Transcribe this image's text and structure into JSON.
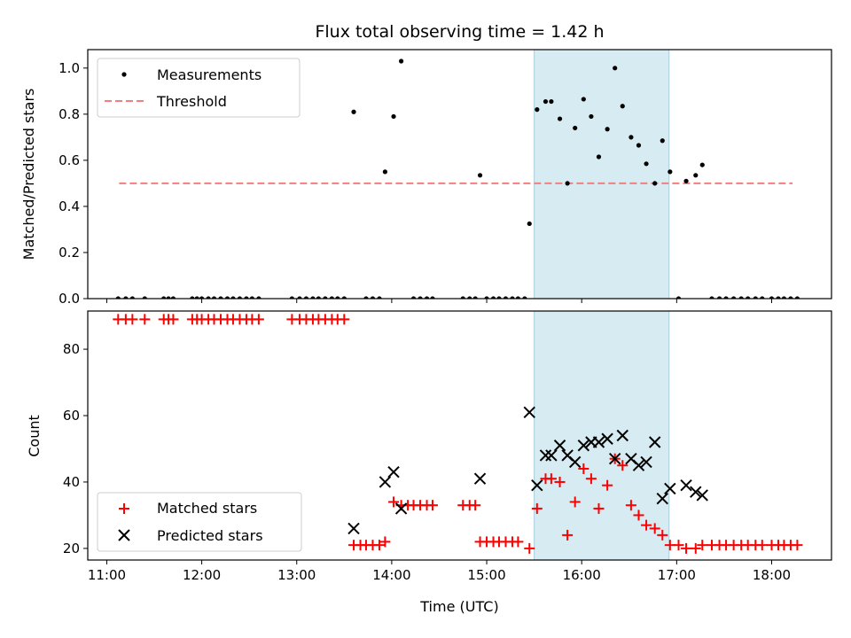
{
  "chart_data": [
    {
      "type": "scatter",
      "title": "Flux total observing time = 1.42 h",
      "xlabel": "",
      "ylabel": "Matched/Predicted stars",
      "xlim": [
        10.8,
        18.63
      ],
      "ylim": [
        0.0,
        1.08
      ],
      "xticks": [
        11,
        12,
        13,
        14,
        15,
        16,
        17,
        18
      ],
      "yticks": [
        0.0,
        0.2,
        0.4,
        0.6,
        0.8,
        1.0
      ],
      "ytick_labels": [
        "0.0",
        "0.2",
        "0.4",
        "0.6",
        "0.8",
        "1.0"
      ],
      "shaded_span": [
        15.5,
        16.92
      ],
      "threshold": {
        "label": "Threshold",
        "y": 0.5,
        "x_range": [
          11.13,
          18.22
        ],
        "color": "#f08080"
      },
      "series": [
        {
          "name": "Measurements",
          "color": "#000000",
          "x": [
            11.12,
            11.2,
            11.27,
            11.4,
            11.6,
            11.65,
            11.7,
            11.9,
            11.95,
            12.0,
            12.07,
            12.13,
            12.2,
            12.27,
            12.33,
            12.4,
            12.47,
            12.53,
            12.6,
            12.95,
            13.03,
            13.1,
            13.17,
            13.23,
            13.3,
            13.37,
            13.43,
            13.5,
            13.6,
            13.73,
            13.8,
            13.87,
            13.93,
            14.02,
            14.1,
            14.23,
            14.3,
            14.37,
            14.43,
            14.75,
            14.82,
            14.88,
            14.93,
            15.0,
            15.07,
            15.13,
            15.2,
            15.27,
            15.33,
            15.4,
            15.45,
            15.53,
            15.62,
            15.68,
            15.77,
            15.85,
            15.93,
            16.02,
            16.1,
            16.18,
            16.27,
            16.35,
            16.43,
            16.52,
            16.6,
            16.68,
            16.77,
            16.85,
            16.93,
            17.02,
            17.1,
            17.2,
            17.27,
            17.37,
            17.45,
            17.52,
            17.6,
            17.68,
            17.75,
            17.83,
            17.9,
            18.0,
            18.07,
            18.13,
            18.2,
            18.27
          ],
          "y": [
            0,
            0,
            0,
            0,
            0,
            0,
            0,
            0,
            0,
            0,
            0,
            0,
            0,
            0,
            0,
            0,
            0,
            0,
            0,
            0,
            0,
            0,
            0,
            0,
            0,
            0,
            0,
            0,
            0.81,
            0,
            0,
            0,
            0.55,
            0.79,
            1.03,
            0,
            0,
            0,
            0,
            0,
            0,
            0,
            0.535,
            0,
            0,
            0,
            0,
            0,
            0,
            0,
            0.325,
            0.82,
            0.855,
            0.855,
            0.78,
            0.5,
            0.74,
            0.865,
            0.79,
            0.615,
            0.735,
            1.0,
            0.835,
            0.7,
            0.665,
            0.585,
            0.5,
            0.685,
            0.55,
            0,
            0.51,
            0.535,
            0.58,
            0,
            0,
            0,
            0,
            0,
            0,
            0,
            0,
            0,
            0,
            0,
            0,
            0
          ]
        }
      ]
    },
    {
      "type": "scatter",
      "title": "",
      "xlabel": "Time (UTC)",
      "ylabel": "Count",
      "xlim": [
        10.8,
        18.63
      ],
      "ylim": [
        16.5,
        91.5
      ],
      "xticks": [
        11,
        12,
        13,
        14,
        15,
        16,
        17,
        18
      ],
      "xtick_labels": [
        "11:00",
        "12:00",
        "13:00",
        "14:00",
        "15:00",
        "16:00",
        "17:00",
        "18:00"
      ],
      "yticks": [
        20,
        40,
        60,
        80
      ],
      "ytick_labels": [
        "20",
        "40",
        "60",
        "80"
      ],
      "shaded_span": [
        15.5,
        16.92
      ],
      "series": [
        {
          "name": "Matched stars",
          "marker": "plus",
          "color": "#ff0000",
          "x": [
            11.12,
            11.2,
            11.27,
            11.4,
            11.6,
            11.65,
            11.7,
            11.9,
            11.95,
            12.0,
            12.07,
            12.13,
            12.2,
            12.27,
            12.33,
            12.4,
            12.47,
            12.53,
            12.6,
            12.95,
            13.03,
            13.1,
            13.17,
            13.23,
            13.3,
            13.37,
            13.43,
            13.5,
            13.6,
            13.67,
            13.73,
            13.8,
            13.87,
            13.93,
            14.02,
            14.1,
            14.17,
            14.23,
            14.3,
            14.37,
            14.43,
            14.75,
            14.82,
            14.88,
            14.93,
            15.0,
            15.07,
            15.13,
            15.2,
            15.27,
            15.33,
            15.45,
            15.53,
            15.62,
            15.68,
            15.77,
            15.85,
            15.93,
            16.02,
            16.1,
            16.18,
            16.27,
            16.35,
            16.43,
            16.52,
            16.6,
            16.68,
            16.77,
            16.85,
            16.93,
            17.02,
            17.1,
            17.2,
            17.27,
            17.37,
            17.45,
            17.52,
            17.6,
            17.68,
            17.75,
            17.83,
            17.9,
            18.0,
            18.07,
            18.13,
            18.2,
            18.27
          ],
          "y": [
            89,
            89,
            89,
            89,
            89,
            89,
            89,
            89,
            89,
            89,
            89,
            89,
            89,
            89,
            89,
            89,
            89,
            89,
            89,
            89,
            89,
            89,
            89,
            89,
            89,
            89,
            89,
            89,
            21,
            21,
            21,
            21,
            21,
            22,
            34,
            33,
            33,
            33,
            33,
            33,
            33,
            33,
            33,
            33,
            22,
            22,
            22,
            22,
            22,
            22,
            22,
            20,
            32,
            41,
            41,
            40,
            24,
            34,
            44,
            41,
            32,
            39,
            47,
            45,
            33,
            30,
            27,
            26,
            24,
            21,
            21,
            20,
            20,
            21,
            21,
            21,
            21,
            21,
            21,
            21,
            21,
            21,
            21,
            21,
            21,
            21,
            21
          ]
        },
        {
          "name": "Predicted stars",
          "marker": "x",
          "color": "#000000",
          "x": [
            13.6,
            13.93,
            14.02,
            14.1,
            14.93,
            15.45,
            15.53,
            15.62,
            15.68,
            15.77,
            15.85,
            15.93,
            16.02,
            16.1,
            16.18,
            16.27,
            16.35,
            16.43,
            16.52,
            16.6,
            16.68,
            16.77,
            16.85,
            16.93,
            17.1,
            17.2,
            17.27
          ],
          "y": [
            26,
            40,
            43,
            32,
            41,
            61,
            39,
            48,
            48,
            51,
            48,
            46,
            51,
            52,
            52,
            53,
            47,
            54,
            47,
            45,
            46,
            52,
            35,
            38,
            39,
            37,
            36
          ]
        }
      ]
    }
  ]
}
